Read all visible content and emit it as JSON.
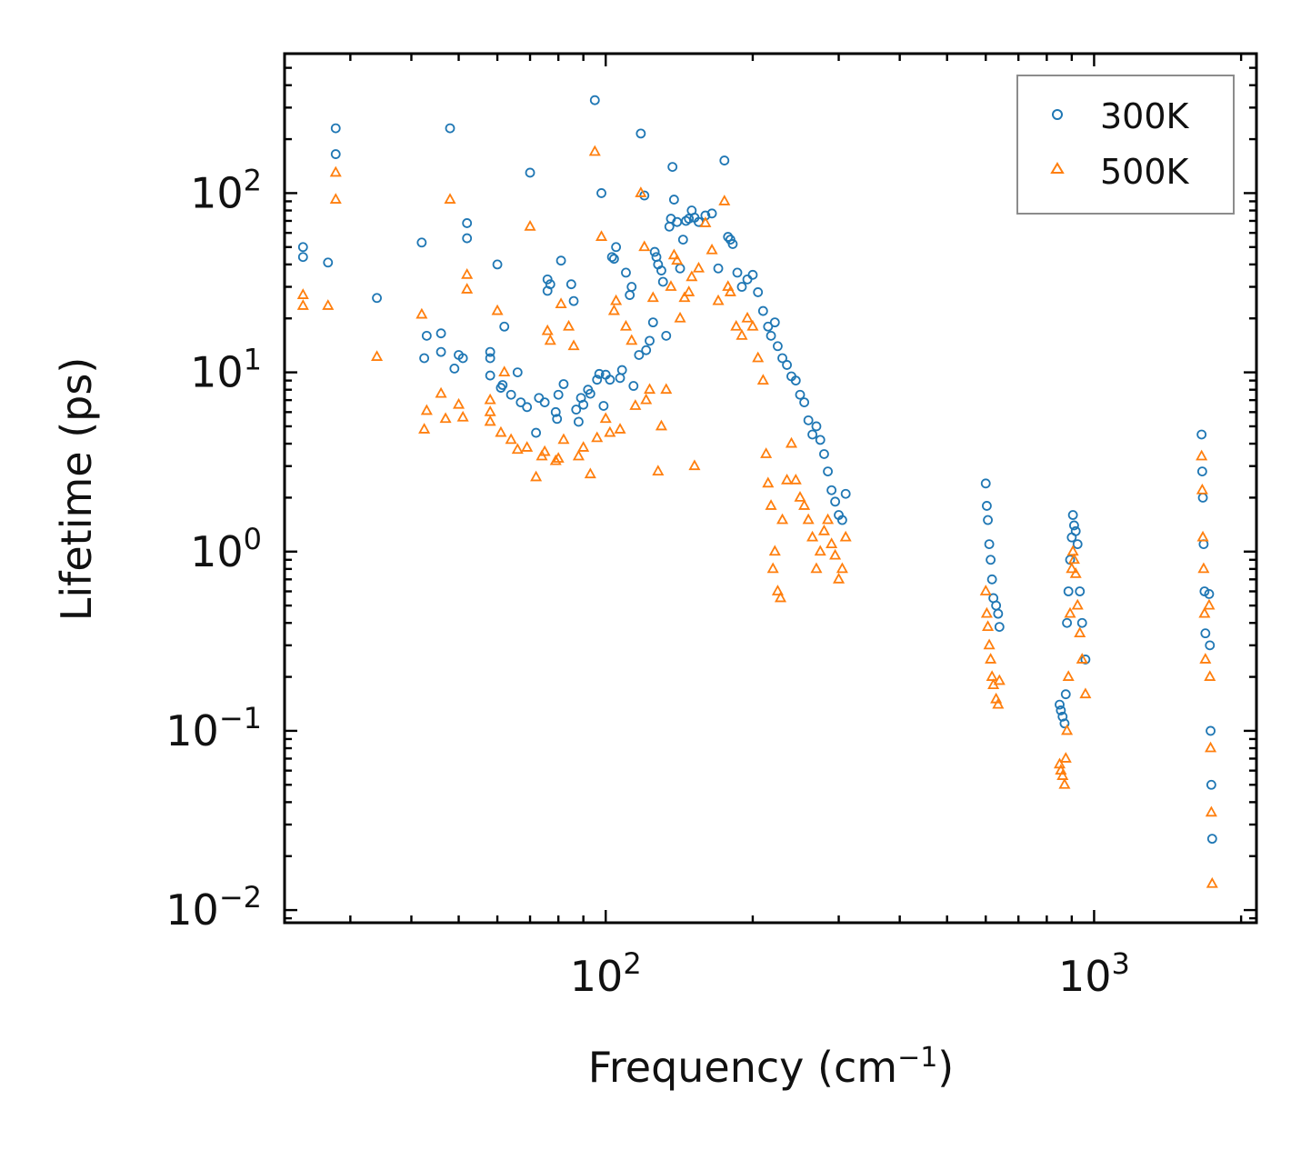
{
  "colors": {
    "series_300K": "#1f77b4",
    "series_500K": "#ff7f0e",
    "axis": "#000000",
    "legend_border": "#8c8c8c",
    "background": "#ffffff"
  },
  "chart_data": {
    "type": "scatter",
    "title": "",
    "xlabel": "Frequency (cm",
    "xlabel_superscript": "−1",
    "xlabel_suffix": ")",
    "ylabel": "Lifetime (ps)",
    "xscale": "log",
    "yscale": "log",
    "xlim": [
      22,
      2150
    ],
    "ylim": [
      0.0085,
      600
    ],
    "x_ticks": [
      {
        "value": 100,
        "base": "10",
        "exp": "2"
      },
      {
        "value": 1000,
        "base": "10",
        "exp": "3"
      }
    ],
    "y_ticks": [
      {
        "value": 0.01,
        "base": "10",
        "exp": "−2"
      },
      {
        "value": 0.1,
        "base": "10",
        "exp": "−1"
      },
      {
        "value": 1,
        "base": "10",
        "exp": "0"
      },
      {
        "value": 10,
        "base": "10",
        "exp": "1"
      },
      {
        "value": 100,
        "base": "10",
        "exp": "2"
      }
    ],
    "legend": {
      "position": "top-right",
      "entries": [
        "300K",
        "500K"
      ]
    },
    "series": [
      {
        "name": "300K",
        "marker": "circle",
        "color": "#1f77b4",
        "points": [
          [
            24.0,
            50
          ],
          [
            24.0,
            44
          ],
          [
            27.0,
            41
          ],
          [
            28.0,
            230
          ],
          [
            28.0,
            165
          ],
          [
            34.0,
            26
          ],
          [
            42.0,
            53
          ],
          [
            43.0,
            16
          ],
          [
            42.5,
            12
          ],
          [
            46.0,
            16.5
          ],
          [
            46.0,
            13
          ],
          [
            48.0,
            230
          ],
          [
            49.0,
            10.5
          ],
          [
            50.0,
            12.5
          ],
          [
            51.0,
            12
          ],
          [
            52.0,
            68
          ],
          [
            52.0,
            56
          ],
          [
            58.0,
            13
          ],
          [
            58.0,
            12
          ],
          [
            58.0,
            9.6
          ],
          [
            60.0,
            40
          ],
          [
            61.0,
            8.2
          ],
          [
            61.5,
            8.5
          ],
          [
            62.0,
            18
          ],
          [
            64.0,
            7.5
          ],
          [
            66.0,
            10
          ],
          [
            67.0,
            6.8
          ],
          [
            69.0,
            6.4
          ],
          [
            70.0,
            130
          ],
          [
            72.0,
            4.6
          ],
          [
            73.0,
            7.2
          ],
          [
            75.0,
            6.8
          ],
          [
            76.0,
            33
          ],
          [
            76.0,
            28.5
          ],
          [
            77.0,
            31
          ],
          [
            79.0,
            6
          ],
          [
            79.5,
            5.5
          ],
          [
            80.0,
            7.5
          ],
          [
            81.0,
            42
          ],
          [
            82.0,
            8.6
          ],
          [
            85.0,
            31
          ],
          [
            86.0,
            25
          ],
          [
            87.0,
            6.2
          ],
          [
            88.0,
            5.3
          ],
          [
            89.0,
            7.2
          ],
          [
            90.0,
            6.6
          ],
          [
            92.0,
            8
          ],
          [
            93.0,
            7.6
          ],
          [
            95.0,
            330
          ],
          [
            96.0,
            9.1
          ],
          [
            97.0,
            9.8
          ],
          [
            98.0,
            100
          ],
          [
            99.0,
            6.5
          ],
          [
            100.0,
            9.7
          ],
          [
            102.0,
            9.1
          ],
          [
            103.0,
            44
          ],
          [
            104.0,
            43
          ],
          [
            105.0,
            50
          ],
          [
            107.0,
            9.3
          ],
          [
            108.0,
            10.3
          ],
          [
            110.0,
            36
          ],
          [
            112.0,
            27
          ],
          [
            113.0,
            30
          ],
          [
            114.0,
            8.4
          ],
          [
            117.0,
            12.5
          ],
          [
            118.0,
            215
          ],
          [
            120.0,
            97
          ],
          [
            121.0,
            13.3
          ],
          [
            123.0,
            15
          ],
          [
            125.0,
            19
          ],
          [
            126.0,
            47
          ],
          [
            127.0,
            44
          ],
          [
            128.0,
            40
          ],
          [
            130.0,
            37
          ],
          [
            131.0,
            32
          ],
          [
            133.0,
            16
          ],
          [
            135.0,
            65
          ],
          [
            136.0,
            72
          ],
          [
            137.0,
            140
          ],
          [
            138.0,
            92
          ],
          [
            140.0,
            69
          ],
          [
            142.0,
            38
          ],
          [
            144.0,
            55
          ],
          [
            146.0,
            70
          ],
          [
            148.0,
            72
          ],
          [
            150.0,
            80
          ],
          [
            152.0,
            73
          ],
          [
            155.0,
            69
          ],
          [
            160.0,
            75
          ],
          [
            165.0,
            77
          ],
          [
            170.0,
            38
          ],
          [
            175.0,
            152
          ],
          [
            178.0,
            57
          ],
          [
            180.0,
            55
          ],
          [
            182.0,
            52
          ],
          [
            186.0,
            36
          ],
          [
            190.0,
            30
          ],
          [
            195.0,
            33
          ],
          [
            200.0,
            35
          ],
          [
            205.0,
            28
          ],
          [
            210.0,
            22
          ],
          [
            215.0,
            18
          ],
          [
            218.0,
            16
          ],
          [
            222.0,
            19
          ],
          [
            225.0,
            14
          ],
          [
            230.0,
            12
          ],
          [
            235.0,
            11
          ],
          [
            240.0,
            9.5
          ],
          [
            245.0,
            9
          ],
          [
            250.0,
            7.5
          ],
          [
            255.0,
            6.8
          ],
          [
            260.0,
            5.4
          ],
          [
            265.0,
            4.5
          ],
          [
            270.0,
            5
          ],
          [
            275.0,
            4.2
          ],
          [
            280.0,
            3.5
          ],
          [
            285.0,
            2.8
          ],
          [
            290.0,
            2.2
          ],
          [
            295.0,
            1.9
          ],
          [
            300.0,
            1.6
          ],
          [
            305.0,
            1.5
          ],
          [
            310.0,
            2.1
          ],
          [
            600.0,
            2.4
          ],
          [
            603.0,
            1.8
          ],
          [
            606.0,
            1.5
          ],
          [
            610.0,
            1.1
          ],
          [
            614.0,
            0.9
          ],
          [
            618.0,
            0.7
          ],
          [
            622.0,
            0.55
          ],
          [
            630.0,
            0.5
          ],
          [
            636.0,
            0.45
          ],
          [
            640.0,
            0.38
          ],
          [
            850.0,
            0.14
          ],
          [
            855.0,
            0.13
          ],
          [
            862.0,
            0.12
          ],
          [
            870.0,
            0.11
          ],
          [
            875.0,
            0.16
          ],
          [
            880.0,
            0.4
          ],
          [
            886.0,
            0.6
          ],
          [
            893.0,
            0.9
          ],
          [
            900.0,
            1.2
          ],
          [
            905.0,
            1.6
          ],
          [
            910.0,
            1.4
          ],
          [
            917.0,
            1.3
          ],
          [
            925.0,
            1.1
          ],
          [
            935.0,
            0.6
          ],
          [
            945.0,
            0.4
          ],
          [
            960.0,
            0.25
          ],
          [
            1660.0,
            4.5
          ],
          [
            1665.0,
            2.8
          ],
          [
            1670.0,
            2
          ],
          [
            1676.0,
            1.1
          ],
          [
            1683.0,
            0.6
          ],
          [
            1690.0,
            0.35
          ],
          [
            1720.0,
            0.58
          ],
          [
            1726.0,
            0.3
          ],
          [
            1732.0,
            0.1
          ],
          [
            1738.0,
            0.05
          ],
          [
            1745.0,
            0.025
          ]
        ]
      },
      {
        "name": "500K",
        "marker": "triangle",
        "color": "#ff7f0e",
        "points": [
          [
            24.0,
            27
          ],
          [
            24.0,
            23.5
          ],
          [
            27.0,
            23.5
          ],
          [
            28.0,
            130
          ],
          [
            28.0,
            92
          ],
          [
            34.0,
            12.2
          ],
          [
            42.0,
            21
          ],
          [
            43.0,
            6.1
          ],
          [
            42.5,
            4.8
          ],
          [
            46.0,
            7.6
          ],
          [
            47.0,
            5.5
          ],
          [
            48.0,
            92
          ],
          [
            50.0,
            6.6
          ],
          [
            51.0,
            5.6
          ],
          [
            52.0,
            35
          ],
          [
            52.0,
            29
          ],
          [
            58.0,
            7
          ],
          [
            58.0,
            6
          ],
          [
            58.0,
            5.3
          ],
          [
            60.0,
            22
          ],
          [
            61.0,
            4.6
          ],
          [
            62.0,
            10
          ],
          [
            64.0,
            4.2
          ],
          [
            66.0,
            3.7
          ],
          [
            69.0,
            3.8
          ],
          [
            70.0,
            65
          ],
          [
            72.0,
            2.6
          ],
          [
            74.0,
            3.4
          ],
          [
            75.0,
            3.6
          ],
          [
            76.0,
            17
          ],
          [
            77.0,
            15
          ],
          [
            79.0,
            3.2
          ],
          [
            80.0,
            3.3
          ],
          [
            81.0,
            24
          ],
          [
            82.0,
            4.2
          ],
          [
            84.0,
            18
          ],
          [
            86.0,
            14
          ],
          [
            88.0,
            3.4
          ],
          [
            90.0,
            3.8
          ],
          [
            93.0,
            2.7
          ],
          [
            95.0,
            170
          ],
          [
            96.0,
            4.3
          ],
          [
            98.0,
            57
          ],
          [
            100.0,
            5.5
          ],
          [
            102.0,
            4.6
          ],
          [
            104.0,
            22
          ],
          [
            105.0,
            25
          ],
          [
            107.0,
            4.8
          ],
          [
            110.0,
            18
          ],
          [
            113.0,
            15
          ],
          [
            115.0,
            6.5
          ],
          [
            118.0,
            100
          ],
          [
            120.0,
            50
          ],
          [
            121.0,
            7
          ],
          [
            123.0,
            8
          ],
          [
            125.0,
            26
          ],
          [
            128.0,
            2.8
          ],
          [
            130.0,
            5
          ],
          [
            133.0,
            8
          ],
          [
            136.0,
            30
          ],
          [
            138.0,
            45
          ],
          [
            140.0,
            42
          ],
          [
            142.0,
            20
          ],
          [
            145.0,
            26
          ],
          [
            148.0,
            28
          ],
          [
            150.0,
            34
          ],
          [
            152.0,
            3
          ],
          [
            155.0,
            38
          ],
          [
            160.0,
            68
          ],
          [
            165.0,
            48
          ],
          [
            170.0,
            25
          ],
          [
            175.0,
            90
          ],
          [
            178.0,
            30
          ],
          [
            180.0,
            28
          ],
          [
            185.0,
            18
          ],
          [
            190.0,
            16
          ],
          [
            195.0,
            20
          ],
          [
            200.0,
            18
          ],
          [
            205.0,
            12
          ],
          [
            210.0,
            9
          ],
          [
            213.0,
            3.5
          ],
          [
            215.0,
            2.4
          ],
          [
            218.0,
            1.8
          ],
          [
            220.0,
            0.8
          ],
          [
            222.0,
            1
          ],
          [
            225.0,
            0.6
          ],
          [
            228.0,
            0.55
          ],
          [
            230.0,
            1.5
          ],
          [
            235.0,
            2.5
          ],
          [
            240.0,
            4
          ],
          [
            245.0,
            2.5
          ],
          [
            250.0,
            2
          ],
          [
            255.0,
            1.8
          ],
          [
            260.0,
            1.5
          ],
          [
            265.0,
            1.2
          ],
          [
            270.0,
            0.8
          ],
          [
            275.0,
            1
          ],
          [
            280.0,
            1.3
          ],
          [
            285.0,
            1.5
          ],
          [
            290.0,
            1.1
          ],
          [
            295.0,
            0.95
          ],
          [
            300.0,
            0.7
          ],
          [
            305.0,
            0.8
          ],
          [
            310.0,
            1.2
          ],
          [
            600.0,
            0.6
          ],
          [
            603.0,
            0.45
          ],
          [
            606.0,
            0.38
          ],
          [
            610.0,
            0.3
          ],
          [
            614.0,
            0.25
          ],
          [
            618.0,
            0.2
          ],
          [
            622.0,
            0.18
          ],
          [
            630.0,
            0.15
          ],
          [
            636.0,
            0.14
          ],
          [
            640.0,
            0.19
          ],
          [
            850.0,
            0.065
          ],
          [
            855.0,
            0.06
          ],
          [
            862.0,
            0.056
          ],
          [
            870.0,
            0.05
          ],
          [
            875.0,
            0.07
          ],
          [
            880.0,
            0.1
          ],
          [
            886.0,
            0.2
          ],
          [
            893.0,
            0.45
          ],
          [
            900.0,
            0.8
          ],
          [
            905.0,
            1
          ],
          [
            910.0,
            0.9
          ],
          [
            917.0,
            0.75
          ],
          [
            925.0,
            0.5
          ],
          [
            935.0,
            0.35
          ],
          [
            945.0,
            0.25
          ],
          [
            960.0,
            0.16
          ],
          [
            1660.0,
            3.4
          ],
          [
            1665.0,
            2.2
          ],
          [
            1670.0,
            1.2
          ],
          [
            1676.0,
            0.8
          ],
          [
            1683.0,
            0.45
          ],
          [
            1690.0,
            0.25
          ],
          [
            1720.0,
            0.5
          ],
          [
            1726.0,
            0.2
          ],
          [
            1732.0,
            0.08
          ],
          [
            1738.0,
            0.035
          ],
          [
            1745.0,
            0.014
          ]
        ]
      }
    ]
  }
}
